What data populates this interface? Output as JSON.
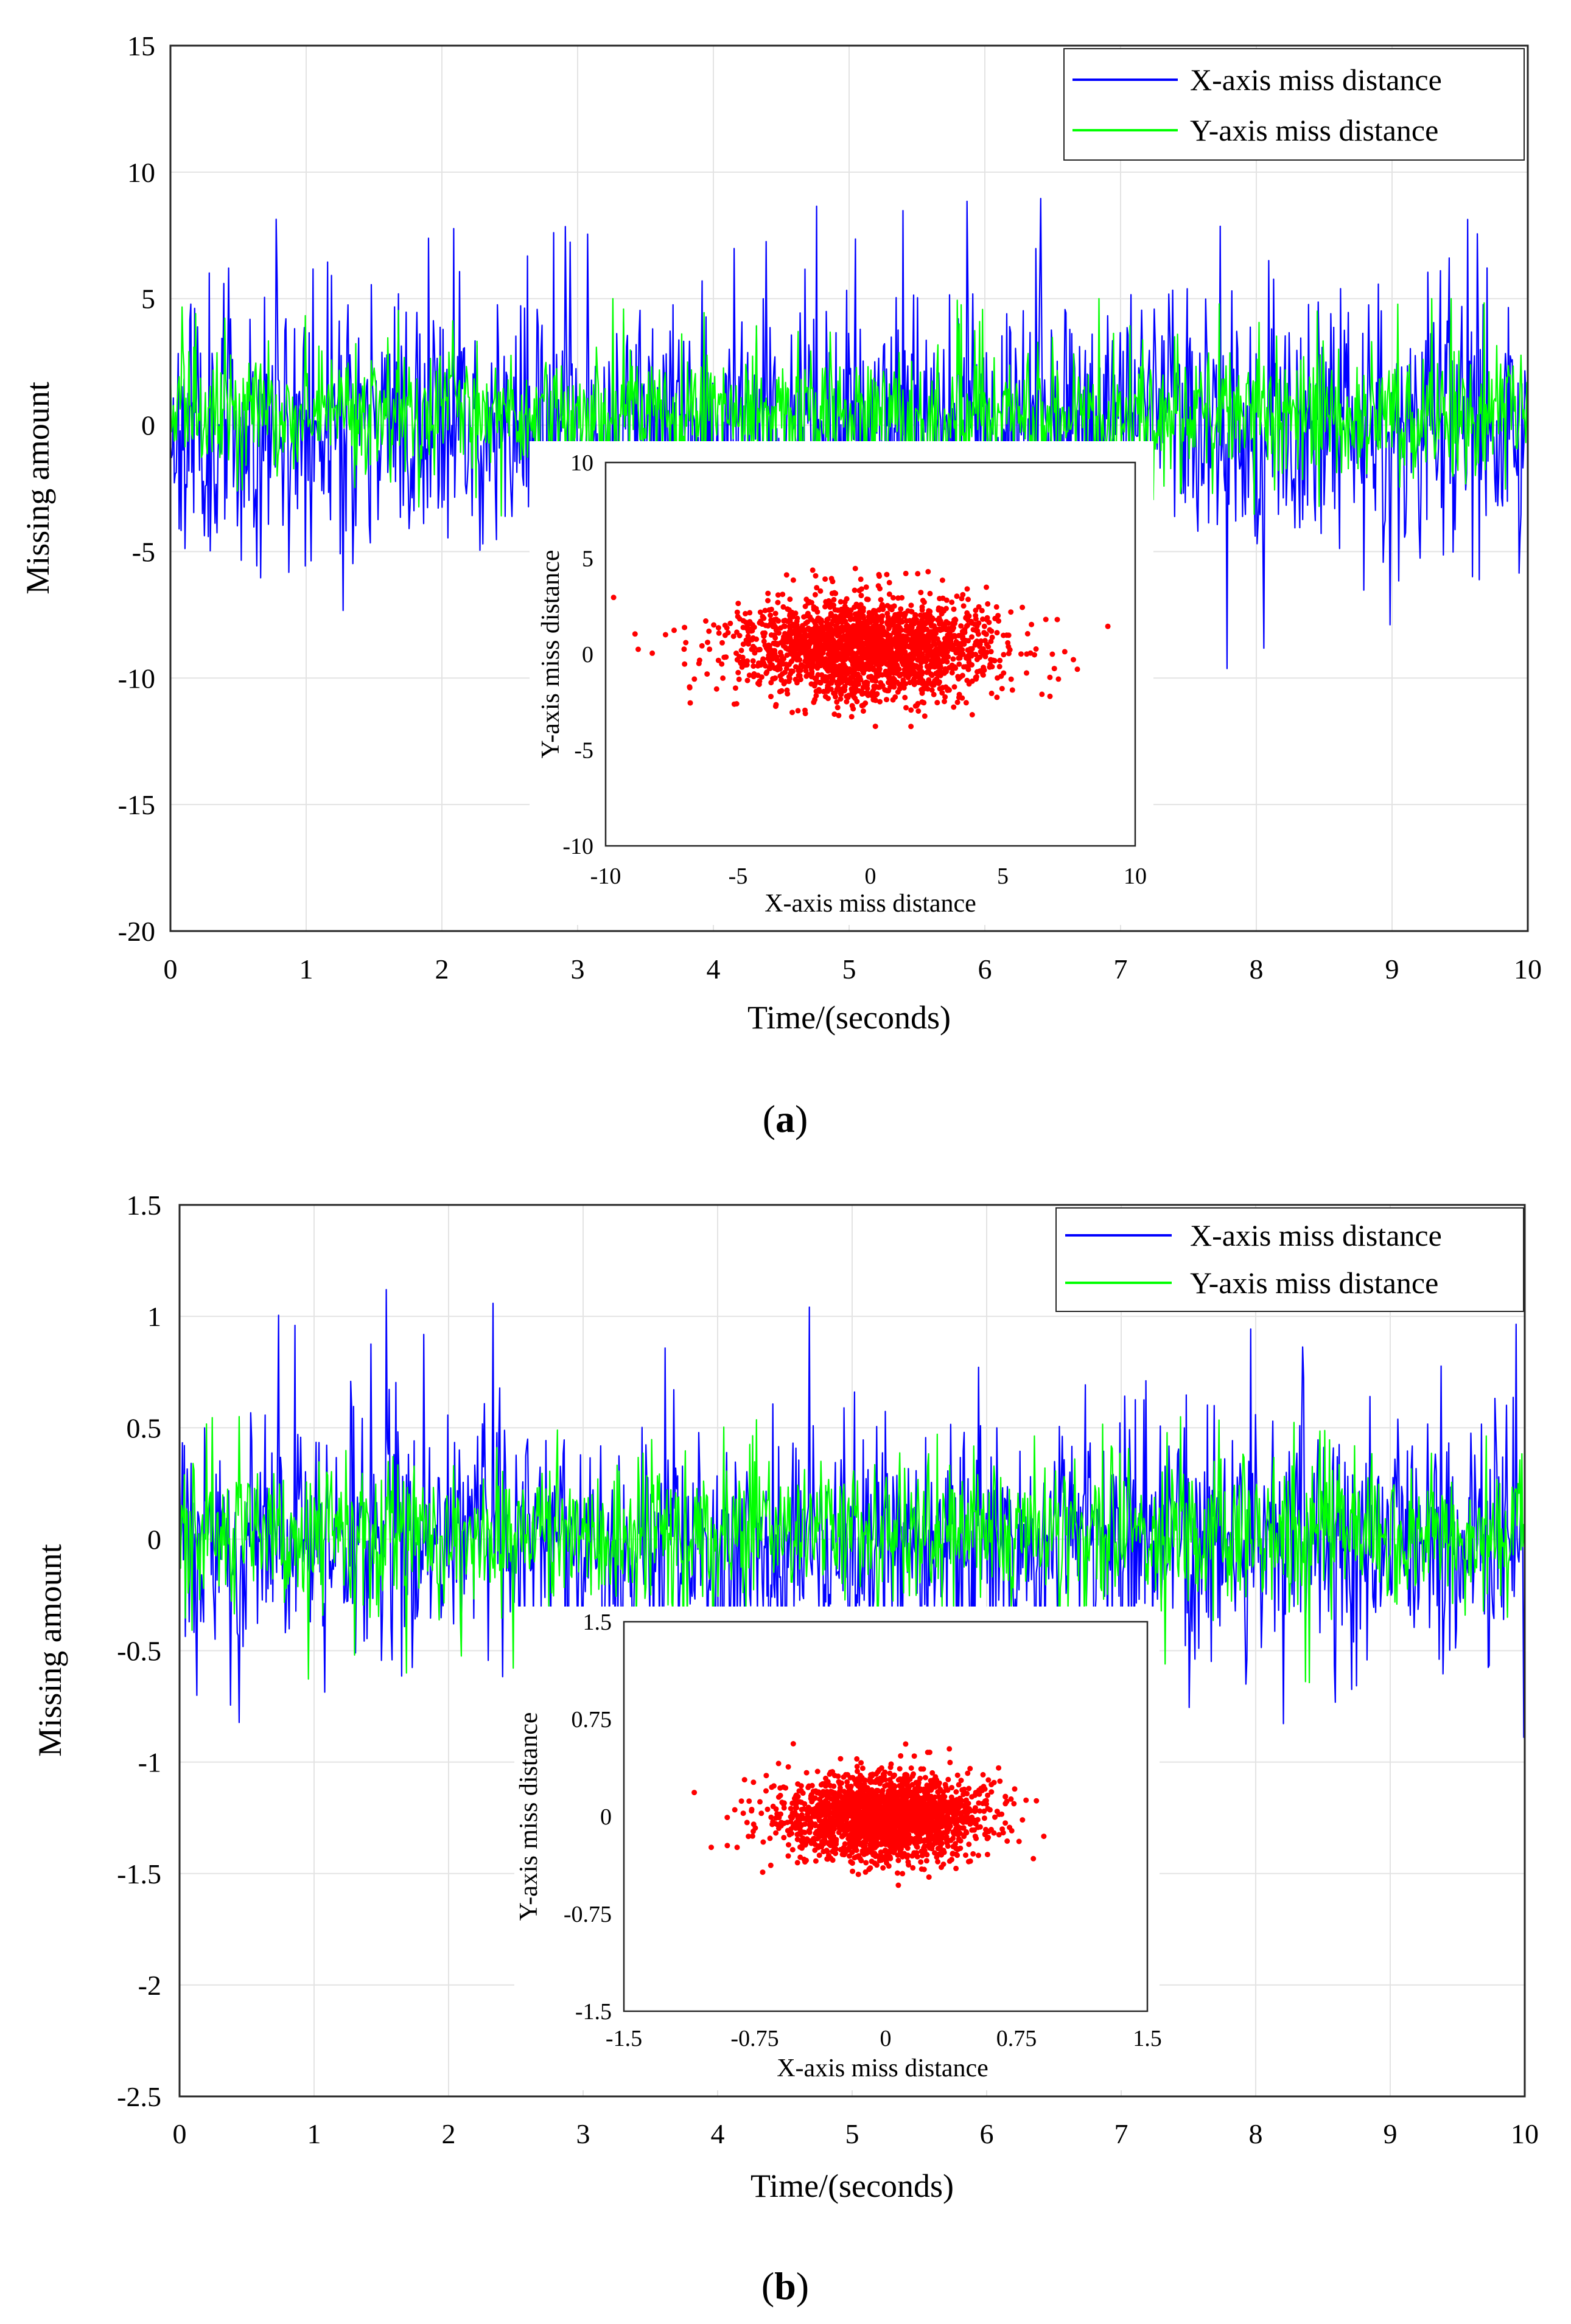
{
  "chart_data": [
    {
      "panel": "a",
      "caption_prefix": "(",
      "caption_letter": "a",
      "caption_suffix": ")",
      "type": "line",
      "xlabel": "Time/(seconds)",
      "ylabel": "Missing amount",
      "xlim": [
        0,
        10
      ],
      "ylim": [
        -20,
        15
      ],
      "xticks": [
        "0",
        "1",
        "2",
        "3",
        "4",
        "5",
        "6",
        "7",
        "8",
        "9",
        "10"
      ],
      "yticks": [
        "15",
        "10",
        "5",
        "0",
        "-5",
        "-10",
        "-15",
        "-20"
      ],
      "grid": true,
      "legend_position": "top-right",
      "series": [
        {
          "name": "X-axis miss distance",
          "color": "#0000ff",
          "mean": 0,
          "std": 2.6,
          "max_peak": 9.0,
          "min_trough": -10.0
        },
        {
          "name": "Y-axis miss distance",
          "color": "#00ff00",
          "mean": 0.5,
          "std": 1.3,
          "max_peak": 5.0,
          "min_trough": -4.5
        }
      ],
      "inset": {
        "type": "scatter",
        "xlabel": "X-axis miss distance",
        "ylabel": "Y-axis miss distance",
        "xlim": [
          -10,
          10
        ],
        "ylim": [
          -10,
          10
        ],
        "xticks": [
          "-10",
          "-5",
          "0",
          "5",
          "10"
        ],
        "yticks": [
          "10",
          "5",
          "0",
          "-5",
          "-10"
        ],
        "color": "#ff0000",
        "x_mean": 0,
        "x_std": 2.5,
        "y_mean": 0.3,
        "y_std": 1.3,
        "n_points": 2200
      },
      "seed": 11
    },
    {
      "panel": "b",
      "caption_prefix": "(",
      "caption_letter": "b",
      "caption_suffix": ")",
      "type": "line",
      "xlabel": "Time/(seconds)",
      "ylabel": "Missing amount",
      "xlim": [
        0,
        10
      ],
      "ylim": [
        -2.5,
        1.5
      ],
      "xticks": [
        "0",
        "1",
        "2",
        "3",
        "4",
        "5",
        "6",
        "7",
        "8",
        "9",
        "10"
      ],
      "yticks": [
        "1.5",
        "1",
        "0.5",
        "0",
        "-0.5",
        "-1",
        "-1.5",
        "-2",
        "-2.5"
      ],
      "grid": true,
      "legend_position": "top-right",
      "series": [
        {
          "name": "X-axis miss distance",
          "color": "#0000ff",
          "mean": 0,
          "std": 0.27,
          "max_peak": 1.12,
          "min_trough": -1.09
        },
        {
          "name": "Y-axis miss distance",
          "color": "#00ff00",
          "mean": 0.02,
          "std": 0.16,
          "max_peak": 0.55,
          "min_trough": -0.68
        }
      ],
      "inset": {
        "type": "scatter",
        "xlabel": "X-axis miss distance",
        "ylabel": "Y-axis miss distance",
        "xlim": [
          -1.5,
          1.5
        ],
        "ylim": [
          -1.5,
          1.5
        ],
        "xticks": [
          "-1.5",
          "-0.75",
          "0",
          "0.75",
          "1.5"
        ],
        "yticks": [
          "1.5",
          "0.75",
          "0",
          "-0.75",
          "-1.5"
        ],
        "color": "#ff0000",
        "x_mean": 0,
        "x_std": 0.28,
        "y_mean": 0,
        "y_std": 0.16,
        "n_points": 2200
      },
      "seed": 29
    }
  ]
}
